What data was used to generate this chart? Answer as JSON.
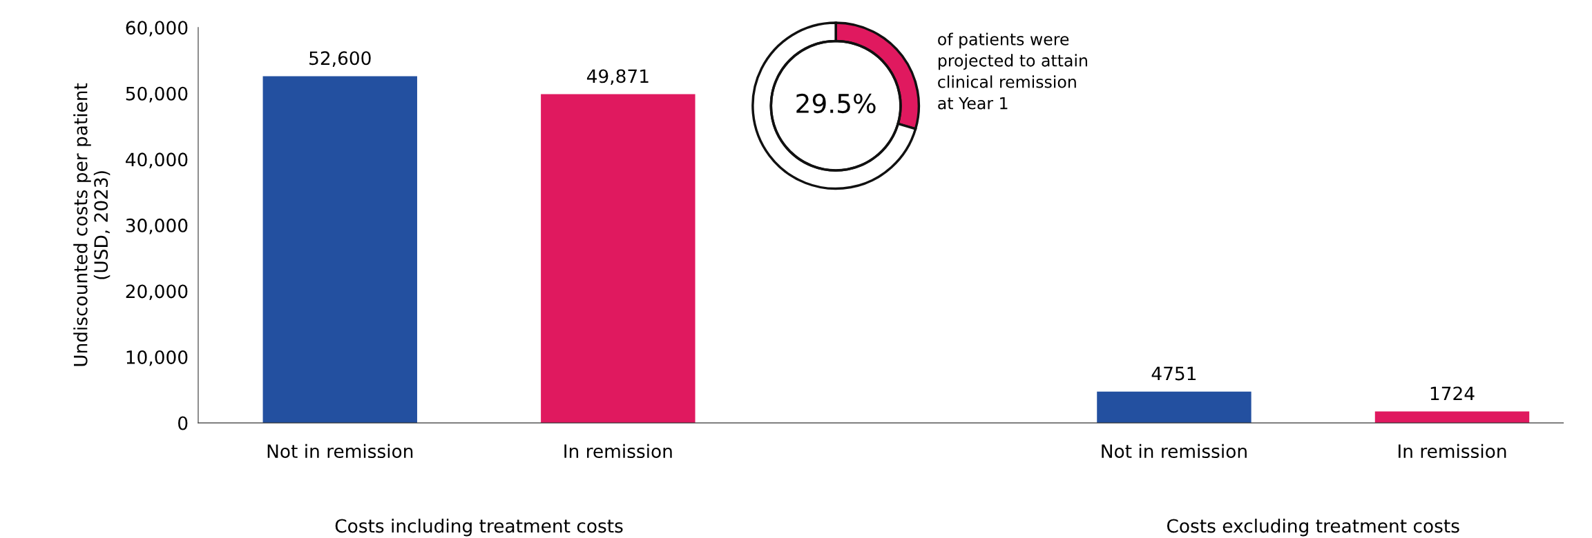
{
  "chart_data": [
    {
      "type": "bar",
      "ylabel": "Undiscounted costs per patient\n(USD, 2023)",
      "categories": [
        "Not in remission",
        "In remission",
        null,
        "Not in remission",
        "In remission"
      ],
      "values": [
        52600,
        49871,
        null,
        4751,
        1724
      ],
      "colors": [
        "#2350a0",
        "#e0195f",
        "#ffffff",
        "#2350a0",
        "#e0195f"
      ],
      "value_labels": [
        "52,600",
        "49,871",
        null,
        "4751",
        "1724"
      ],
      "ylim": [
        0,
        60000
      ],
      "yticks": [
        0,
        {
          "value": 10000,
          "label": "10,000"
        },
        {
          "value": 20000,
          "label": "20,000"
        },
        {
          "value": 30000,
          "label": "30,000"
        },
        {
          "value": 40000,
          "label": "40,000"
        },
        {
          "value": 50000,
          "label": "50,000"
        },
        {
          "value": 60000,
          "label": "60,000"
        }
      ],
      "annotations": [
        {
          "text": "Costs including treatment costs"
        },
        {
          "text": "Costs excluding treatment costs"
        }
      ],
      "grid": false,
      "legend": false
    },
    {
      "type": "donut",
      "categories": [
        null,
        null
      ],
      "values": [
        29.5,
        70.5
      ],
      "colors": [
        "#e0195f",
        "#ffffff"
      ],
      "annotations": [
        "29.5%",
        "of patients were\nprojected to attain\nclinical remission\nat Year 1"
      ]
    }
  ]
}
